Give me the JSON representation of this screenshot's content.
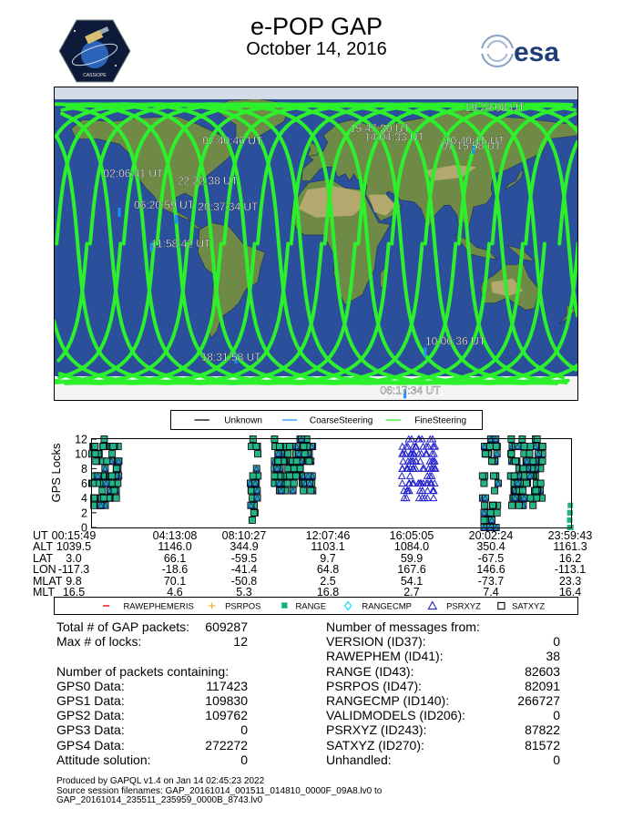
{
  "header": {
    "title": "e-POP GAP",
    "subtitle": "October 14, 2016",
    "esa_logo_text": "esa",
    "epop_logo_text": "CASSIOPE"
  },
  "colors": {
    "fine": "#2cf02c",
    "coarse": "#1e90ff",
    "unknown": "#000000",
    "ocean": "#2c4f9c",
    "land": "#6f8a46",
    "ice": "#f2f4f6",
    "desert": "#c9b27b",
    "range": "#21b58a",
    "rangecmp": "#00d8e6",
    "psrxyz": "#2222cc",
    "rawephem": "#e00000",
    "psrpos": "#f0a020"
  },
  "map_labels": [
    {
      "text": "19:24:08 UT",
      "lon": 102,
      "lat": 76
    },
    {
      "text": "15:47:30 UT",
      "lon": 23,
      "lat": 64
    },
    {
      "text": "14:04:33 UT",
      "lon": 33,
      "lat": 59
    },
    {
      "text": "10:40:15 UT",
      "lon": 88,
      "lat": 57
    },
    {
      "text": "07:15:58 UT",
      "lon": 86,
      "lat": 54
    },
    {
      "text": "07:40:46 UT",
      "lon": -78,
      "lat": 57
    },
    {
      "text": "02:06:41 UT",
      "lon": -146,
      "lat": 38
    },
    {
      "text": "22:22:38 UT",
      "lon": -95,
      "lat": 34
    },
    {
      "text": "06:20:59 UT",
      "lon": -125,
      "lat": 20
    },
    {
      "text": "20:37:34 UT",
      "lon": -81,
      "lat": 19
    },
    {
      "text": "11:58:42 UT",
      "lon": -113,
      "lat": -2
    },
    {
      "text": "18:31:58 UT",
      "lon": -79,
      "lat": -67
    },
    {
      "text": "10:06:36 UT",
      "lon": 75,
      "lat": -58
    },
    {
      "text": "06:17:34 UT",
      "lon": 44,
      "lat": -86
    }
  ],
  "legend_top": [
    "Unknown",
    "CoarseSteering",
    "FineSteering"
  ],
  "chart_data": {
    "type": "scatter",
    "ylabel": "GPS Locks",
    "ylim": [
      0,
      12
    ],
    "yticks": [
      "0",
      "2",
      "4",
      "6",
      "8",
      "10",
      "12"
    ],
    "xlim": [
      "00:15:49",
      "23:59:43"
    ],
    "columns": [
      {
        "UT": "00:15:49",
        "ALT": "1039.5",
        "LAT": "3.0",
        "LON": "-117.3",
        "MLAT": "9.8",
        "MLT": "16.5"
      },
      {
        "UT": "04:13:08",
        "ALT": "1146.0",
        "LAT": "66.1",
        "LON": "-18.6",
        "MLAT": "70.1",
        "MLT": "4.6"
      },
      {
        "UT": "08:10:27",
        "ALT": "344.9",
        "LAT": "-59.5",
        "LON": "-41.4",
        "MLAT": "-50.8",
        "MLT": "5.3"
      },
      {
        "UT": "12:07:46",
        "ALT": "1103.1",
        "LAT": "9.7",
        "LON": "64.8",
        "MLAT": "2.5",
        "MLT": "16.8"
      },
      {
        "UT": "16:05:05",
        "ALT": "1084.0",
        "LAT": "59.9",
        "LON": "167.6",
        "MLAT": "54.1",
        "MLT": "2.7"
      },
      {
        "UT": "20:02:24",
        "ALT": "350.4",
        "LAT": "-67.5",
        "LON": "146.6",
        "MLAT": "-73.7",
        "MLT": "7.4"
      },
      {
        "UT": "23:59:43",
        "ALT": "1161.3",
        "LAT": "16.2",
        "LON": "-113.1",
        "MLAT": "23.3",
        "MLT": "16.4"
      }
    ],
    "row_labels": [
      "UT",
      "ALT",
      "LAT",
      "LON",
      "MLAT",
      "MLT"
    ],
    "legend": [
      "RAWEPHEMERIS",
      "PSRPOS",
      "RANGE",
      "RANGECMP",
      "PSRXYZ",
      "SATXYZ"
    ],
    "series_clusters": [
      {
        "name": "RANGE+SATXYZ",
        "start_hr": 0.25,
        "end_hr": 1.6,
        "min": 3,
        "max": 12
      },
      {
        "name": "RANGE+SATXYZ",
        "start_hr": 8.1,
        "end_hr": 8.5,
        "min": 0,
        "max": 12
      },
      {
        "name": "RANGE+SATXYZ",
        "start_hr": 9.3,
        "end_hr": 11.2,
        "min": 5,
        "max": 12
      },
      {
        "name": "PSRXYZ",
        "start_hr": 15.6,
        "end_hr": 17.3,
        "min": 4,
        "max": 12
      },
      {
        "name": "RANGE+SATXYZ",
        "start_hr": 19.6,
        "end_hr": 20.4,
        "min": 0,
        "max": 12
      },
      {
        "name": "RANGE+SATXYZ",
        "start_hr": 21.0,
        "end_hr": 22.6,
        "min": 3,
        "max": 12
      },
      {
        "name": "RANGE",
        "start_hr": 23.9,
        "end_hr": 24.0,
        "min": 0,
        "max": 3
      }
    ]
  },
  "stats_left": [
    {
      "label": "Total # of GAP packets:",
      "value": "609287"
    },
    {
      "label": "Max # of locks:",
      "value": "12"
    },
    {
      "label": "",
      "value": ""
    },
    {
      "label": "Number of packets containing:",
      "value": ""
    },
    {
      "label": "GPS0 Data:",
      "value": "117423"
    },
    {
      "label": "GPS1 Data:",
      "value": "109830"
    },
    {
      "label": "GPS2 Data:",
      "value": "109762"
    },
    {
      "label": "GPS3 Data:",
      "value": "0"
    },
    {
      "label": "GPS4 Data:",
      "value": "272272"
    },
    {
      "label": "Attitude solution:",
      "value": "0"
    }
  ],
  "stats_right": [
    {
      "label": "Number of messages from:",
      "value": ""
    },
    {
      "label": "VERSION (ID37):",
      "value": "0"
    },
    {
      "label": "RAWEPHEM (ID41):",
      "value": "38"
    },
    {
      "label": "RANGE (ID43):",
      "value": "82603"
    },
    {
      "label": "PSRPOS (ID47):",
      "value": "82091"
    },
    {
      "label": "RANGECMP (ID140):",
      "value": "266727"
    },
    {
      "label": "VALIDMODELS (ID206):",
      "value": "0"
    },
    {
      "label": "PSRXYZ (ID243):",
      "value": "87822"
    },
    {
      "label": "SATXYZ (ID270):",
      "value": "81572"
    },
    {
      "label": "Unhandled:",
      "value": "0"
    }
  ],
  "footer": {
    "line1": "Produced by GAPQL v1.4 on Jan 14 02:45:23 2022",
    "line2": "Source session filenames: GAP_20161014_001511_014810_0000F_09A8.lv0 to",
    "line3": "GAP_20161014_235511_235959_0000B_8743.lv0"
  }
}
